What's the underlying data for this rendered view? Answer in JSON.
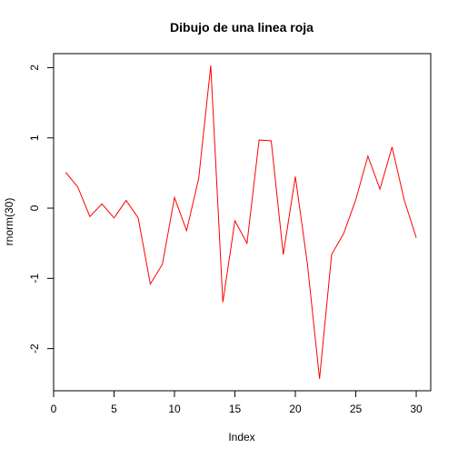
{
  "chart_data": {
    "type": "line",
    "title": "Dibujo de una linea roja",
    "xlabel": "Index",
    "ylabel": "rnorm(30)",
    "xlim": [
      0,
      31.2
    ],
    "ylim": [
      -2.6,
      2.2
    ],
    "x_ticks": [
      0,
      5,
      10,
      15,
      20,
      25,
      30
    ],
    "x_tick_labels": [
      "0",
      "5",
      "10",
      "15",
      "20",
      "25",
      "30"
    ],
    "y_ticks": [
      -2,
      -1,
      0,
      1,
      2
    ],
    "y_tick_labels": [
      "-2",
      "-1",
      "0",
      "1",
      "2"
    ],
    "grid": false,
    "series": [
      {
        "color": "#ff0000",
        "x": [
          1,
          2,
          3,
          4,
          5,
          6,
          7,
          8,
          9,
          10,
          11,
          12,
          13,
          14,
          15,
          16,
          17,
          18,
          19,
          20,
          21,
          22,
          23,
          24,
          25,
          26,
          27,
          28,
          29,
          30
        ],
        "values": [
          0.51,
          0.3,
          -0.12,
          0.06,
          -0.14,
          0.11,
          -0.14,
          -1.08,
          -0.8,
          0.15,
          -0.32,
          0.42,
          2.03,
          -1.34,
          -0.18,
          -0.5,
          0.97,
          0.96,
          -0.66,
          0.45,
          -0.8,
          -2.43,
          -0.66,
          -0.36,
          0.12,
          0.74,
          0.27,
          0.87,
          0.12,
          -0.42
        ]
      }
    ]
  }
}
